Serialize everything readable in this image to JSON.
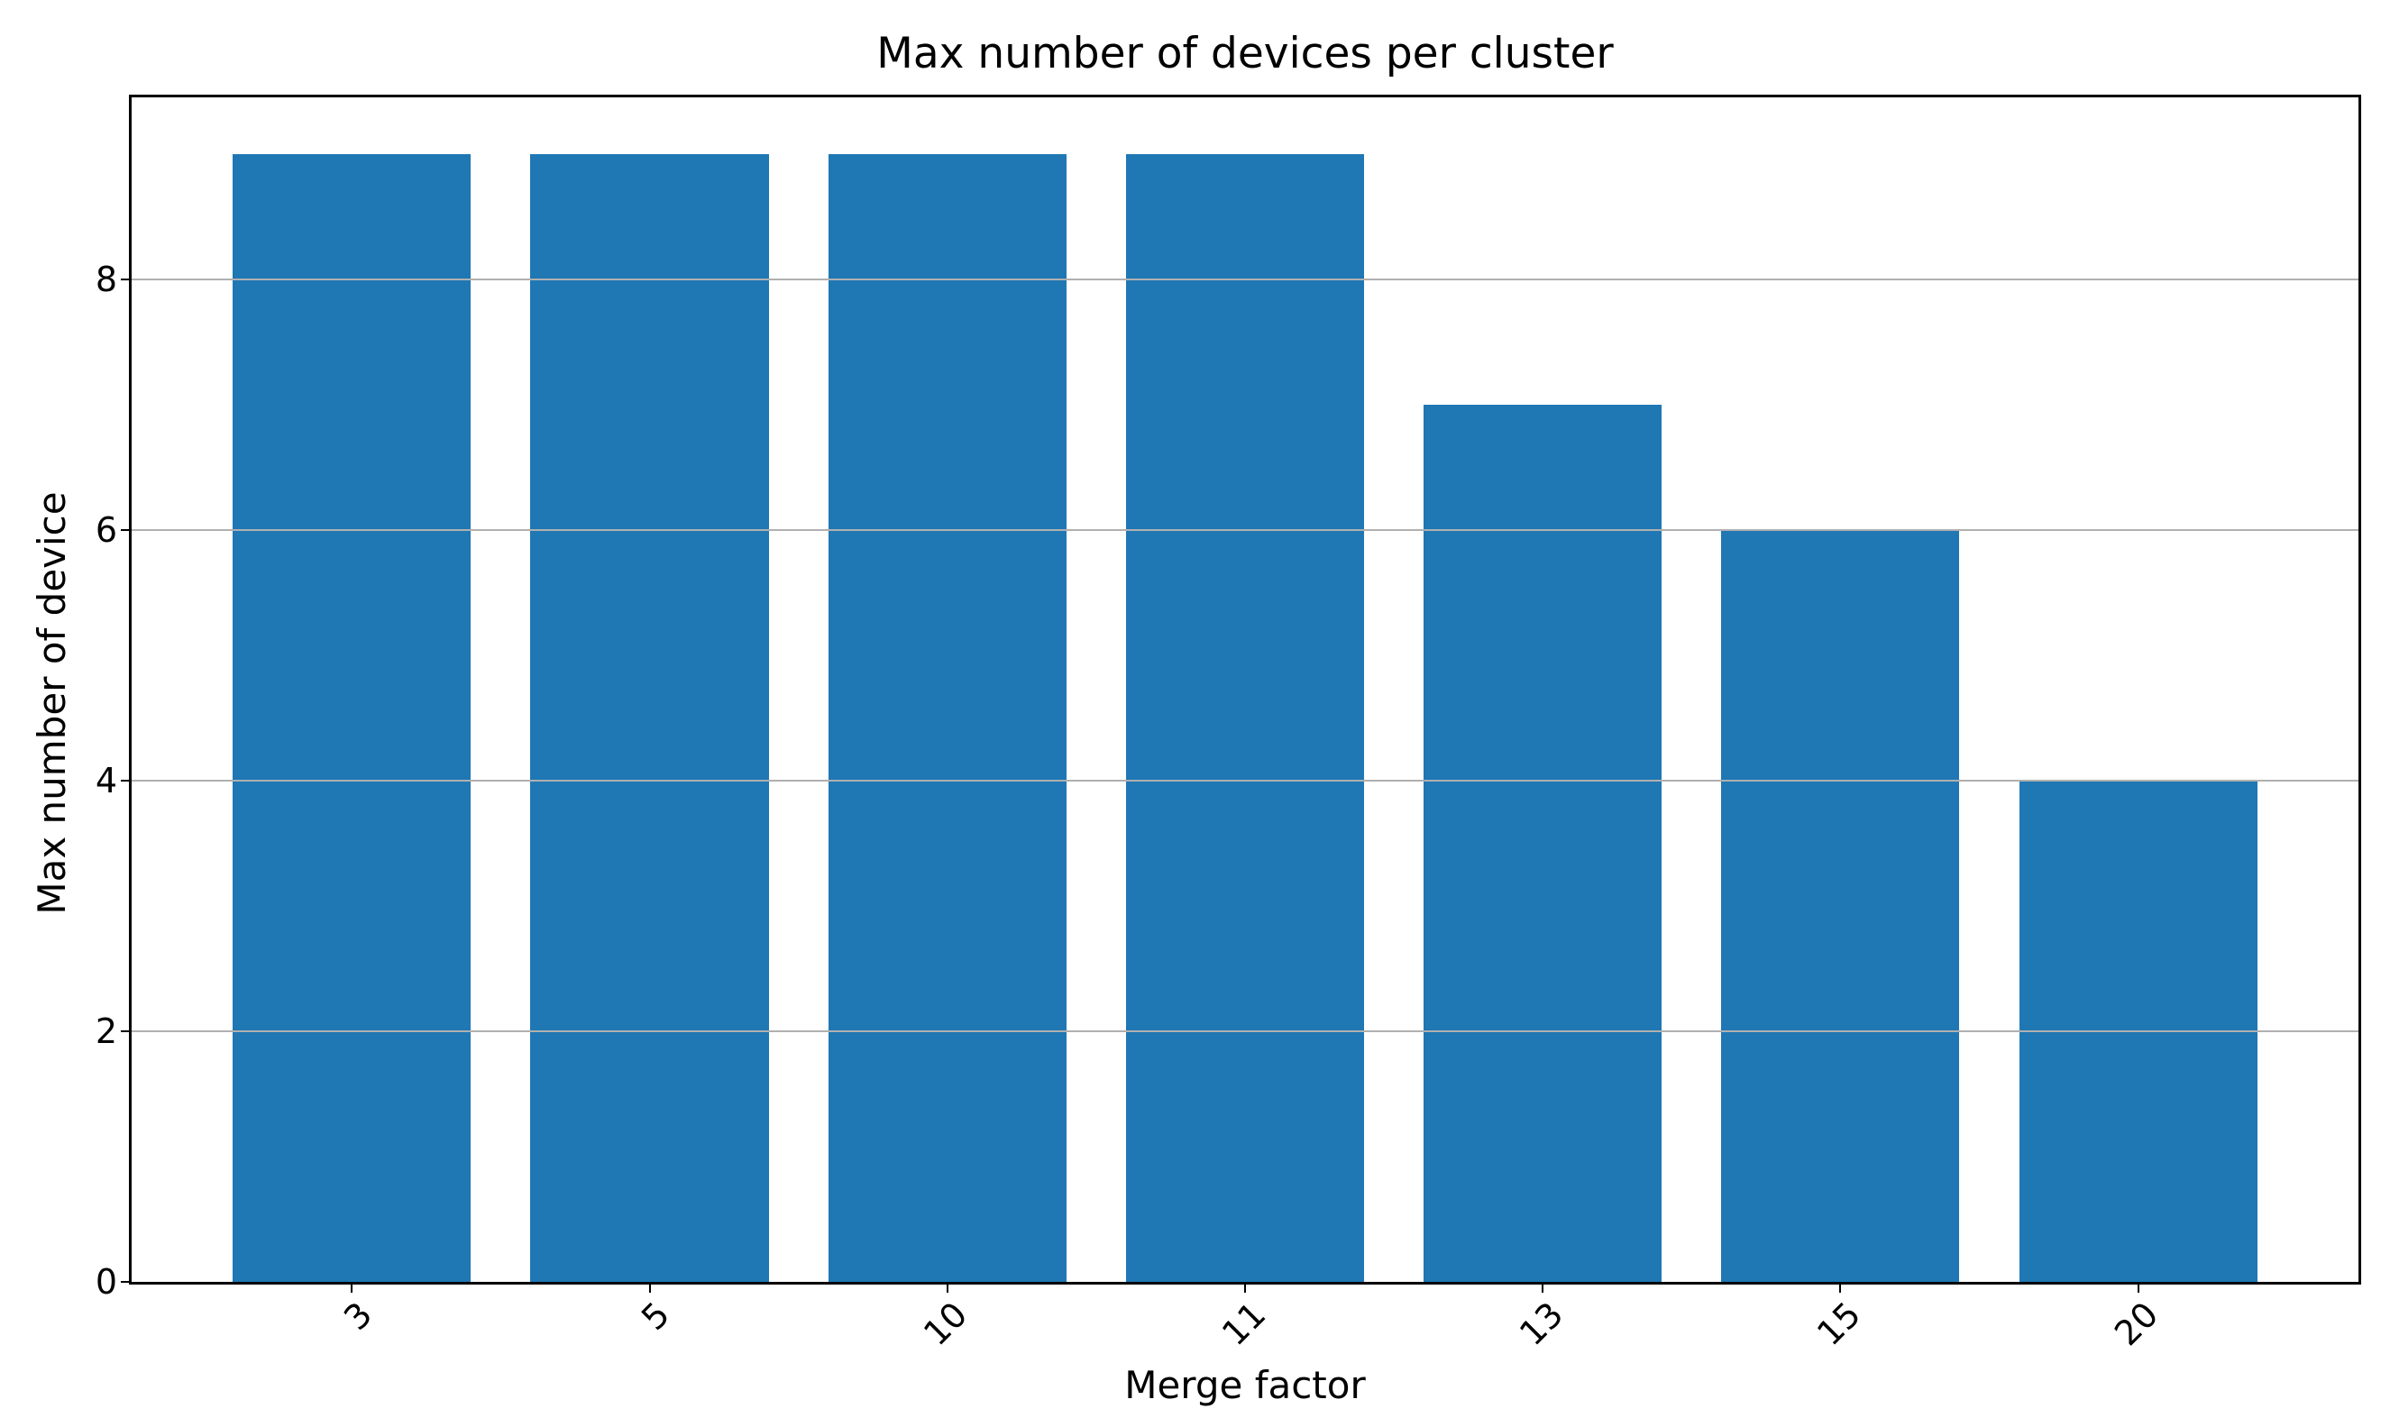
{
  "chart_data": {
    "type": "bar",
    "title": "Max number of devices per cluster",
    "xlabel": "Merge factor",
    "ylabel": "Max number of device",
    "categories": [
      "3",
      "5",
      "10",
      "11",
      "13",
      "15",
      "20"
    ],
    "values": [
      9,
      9,
      9,
      9,
      7,
      6,
      4
    ],
    "yticks": [
      0,
      2,
      4,
      6,
      8
    ],
    "ylim": [
      0,
      9.45
    ],
    "bar_width_fraction": 0.8,
    "grid": true,
    "legend_position": "none",
    "colors": {
      "bar": "#1f77b4",
      "grid": "#b0b0b0",
      "spine": "#000000",
      "text": "#000000",
      "background": "#ffffff"
    }
  }
}
